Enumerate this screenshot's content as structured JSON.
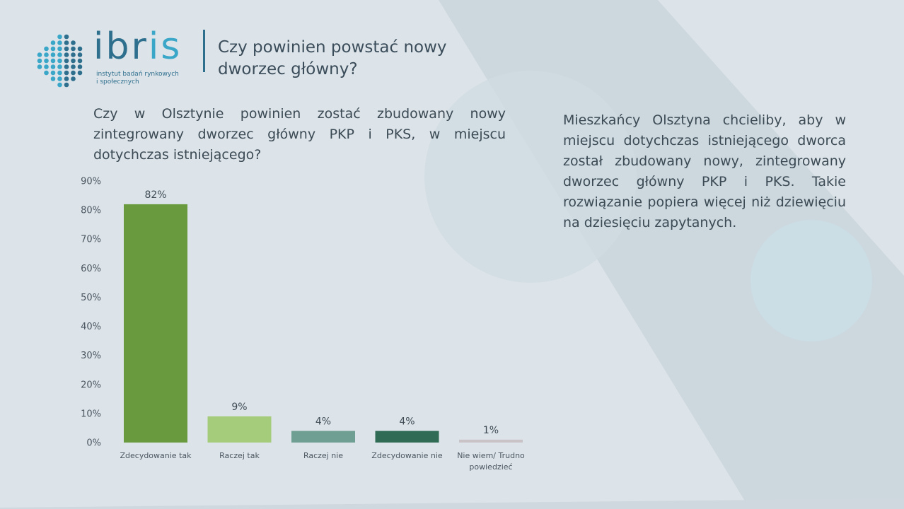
{
  "header": {
    "logo_word_a": "ibr",
    "logo_word_b": "is",
    "logo_sub_line1": "instytut badań rynkowych",
    "logo_sub_line2": "i społecznych",
    "title": "Czy powinien powstać nowy dworzec główny?"
  },
  "question": "Czy w Olsztynie powinien zostać zbudowany nowy zintegrowany dworzec główny PKP i PKS,  w miejscu dotychczas istniejącego?",
  "commentary": "Mieszkańcy Olsztyna chcieliby, aby w miejscu dotychczas istniejącego dworca został zbudowany nowy, zintegrowany dworzec główny PKP i PKS. Takie rozwiązanie popiera więcej niż dziewięciu na dziesięciu zapytanych.",
  "colors": {
    "brand": "#2f6f8e",
    "brand_accent": "#3aa7c9"
  },
  "chart_data": {
    "type": "bar",
    "categories": [
      "Zdecydowanie tak",
      "Raczej tak",
      "Raczej nie",
      "Zdecydowanie nie",
      "Nie wiem/ Trudno powiedzieć"
    ],
    "category_lines": [
      [
        "Zdecydowanie tak"
      ],
      [
        "Raczej tak"
      ],
      [
        "Raczej nie"
      ],
      [
        "Zdecydowanie nie"
      ],
      [
        "Nie wiem/ Trudno",
        "powiedzieć"
      ]
    ],
    "values": [
      82,
      9,
      4,
      4,
      1
    ],
    "value_labels": [
      "82%",
      "9%",
      "4%",
      "4%",
      "1%"
    ],
    "colors": [
      "#6a9a3e",
      "#a5cc7a",
      "#6f9e92",
      "#2f6b55",
      "#c9c2c6"
    ],
    "yticks": [
      0,
      10,
      20,
      30,
      40,
      50,
      60,
      70,
      80,
      90
    ],
    "ytick_labels": [
      "0%",
      "10%",
      "20%",
      "30%",
      "40%",
      "50%",
      "60%",
      "70%",
      "80%",
      "90%"
    ],
    "ylim": [
      0,
      90
    ],
    "grid": false,
    "title": "",
    "xlabel": "",
    "ylabel": ""
  }
}
